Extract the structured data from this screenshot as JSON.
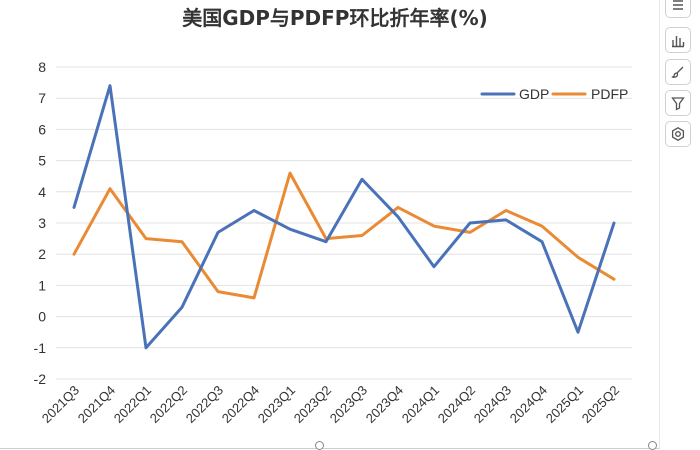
{
  "chart_data": {
    "type": "line",
    "title": "美国GDP与PDFP环比折年率(%)",
    "categories": [
      "2021Q3",
      "2021Q4",
      "2022Q1",
      "2022Q2",
      "2022Q3",
      "2022Q4",
      "2023Q1",
      "2023Q2",
      "2023Q3",
      "2023Q4",
      "2024Q1",
      "2024Q2",
      "2024Q3",
      "2024Q4",
      "2025Q1",
      "2025Q2"
    ],
    "series": [
      {
        "name": "GDP",
        "color": "#4a72b8",
        "values": [
          3.5,
          7.4,
          -1.0,
          0.3,
          2.7,
          3.4,
          2.8,
          2.4,
          4.4,
          3.2,
          1.6,
          3.0,
          3.1,
          2.4,
          -0.5,
          3.0
        ]
      },
      {
        "name": "PDFP",
        "color": "#ea8a35",
        "values": [
          2.0,
          4.1,
          2.5,
          2.4,
          0.8,
          0.6,
          4.6,
          2.5,
          2.6,
          3.5,
          2.9,
          2.7,
          3.4,
          2.9,
          1.9,
          1.2
        ]
      }
    ],
    "ylim": [
      -2,
      8
    ],
    "yticks": [
      8,
      7,
      6,
      5,
      4,
      3,
      2,
      1,
      0,
      -1,
      -2
    ],
    "grid": true,
    "legend_position": "top-right"
  },
  "toolbar": {
    "icons": [
      "list-icon",
      "bar-chart-icon",
      "brush-icon",
      "filter-icon",
      "settings-icon"
    ]
  }
}
